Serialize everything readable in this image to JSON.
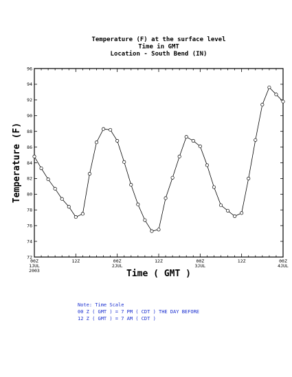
{
  "chart_data": {
    "type": "line",
    "title": [
      "Temperature (F) at the surface level",
      "Time in GMT",
      "Location - South Bend (IN)"
    ],
    "xlabel": "Time ( GMT )",
    "ylabel": "Temperature (F)",
    "ylim": [
      72,
      96
    ],
    "xlim": [
      0,
      72
    ],
    "yticks": [
      "72",
      "74",
      "76",
      "78",
      "80",
      "82",
      "84",
      "86",
      "88",
      "90",
      "92",
      "94",
      "96"
    ],
    "xticks": [
      {
        "x": 0,
        "lines": [
          "00Z",
          "1JUL",
          "2003"
        ]
      },
      {
        "x": 12,
        "lines": [
          "12Z"
        ]
      },
      {
        "x": 24,
        "lines": [
          "00Z",
          "2JUL"
        ]
      },
      {
        "x": 36,
        "lines": [
          "12Z"
        ]
      },
      {
        "x": 48,
        "lines": [
          "00Z",
          "3JUL"
        ]
      },
      {
        "x": 60,
        "lines": [
          "12Z"
        ]
      },
      {
        "x": 72,
        "lines": [
          "00Z",
          "4JUL"
        ]
      }
    ],
    "series": [
      {
        "x": [
          0,
          2,
          4,
          6,
          8,
          10,
          12,
          14,
          16,
          18,
          20,
          22,
          24,
          26,
          28,
          30,
          32,
          34,
          36,
          38,
          40,
          42,
          44,
          46,
          48,
          50,
          52,
          54,
          56,
          58,
          60,
          62,
          64,
          66,
          68,
          70,
          72
        ],
        "y": [
          84.8,
          83.3,
          81.9,
          80.7,
          79.4,
          78.4,
          77.1,
          77.5,
          82.6,
          86.6,
          88.3,
          88.2,
          86.8,
          84.1,
          81.2,
          78.7,
          76.7,
          75.3,
          75.5,
          79.5,
          82.1,
          84.8,
          87.3,
          86.8,
          86.1,
          83.7,
          80.9,
          78.6,
          77.9,
          77.2,
          77.6,
          82.0,
          86.9,
          91.4,
          93.6,
          92.7,
          91.8
        ]
      }
    ],
    "grid": false,
    "legend": "none"
  },
  "note": {
    "line1": "Note: Time Scale",
    "line2": "00 Z ( GMT ) = 7 PM ( CDT ) THE DAY BEFORE",
    "line3": "12 Z ( GMT ) = 7 AM ( CDT )"
  }
}
